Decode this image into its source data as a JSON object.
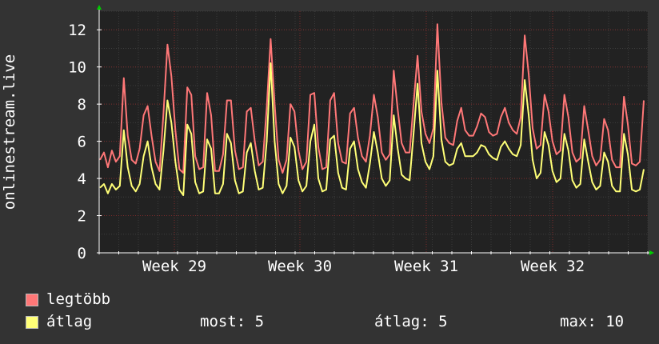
{
  "chart_data": {
    "type": "line",
    "ylabel": "onlinestream.live",
    "ylim": [
      0,
      13
    ],
    "yticks": [
      "0",
      "2",
      "4",
      "6",
      "8",
      "10",
      "12"
    ],
    "xticks": [
      "Week 29",
      "Week 30",
      "Week 31",
      "Week 32"
    ],
    "grid": true,
    "series": [
      {
        "name": "legtöbb",
        "color": "#ff7777",
        "values": [
          5.0,
          5.4,
          4.6,
          5.5,
          4.9,
          5.2,
          9.4,
          6.3,
          5.0,
          4.8,
          5.6,
          7.4,
          7.9,
          6.3,
          4.9,
          4.4,
          7.5,
          11.2,
          9.5,
          6.6,
          4.5,
          4.3,
          8.9,
          8.5,
          5.2,
          4.5,
          4.6,
          8.6,
          7.4,
          4.4,
          4.4,
          5.3,
          8.2,
          8.2,
          5.5,
          4.5,
          4.6,
          7.6,
          7.8,
          6.0,
          4.7,
          4.9,
          7.8,
          11.5,
          8.0,
          5.0,
          4.3,
          5.0,
          8.0,
          7.6,
          5.5,
          4.5,
          4.9,
          8.5,
          8.6,
          5.7,
          4.5,
          4.6,
          8.2,
          8.6,
          5.9,
          4.9,
          4.8,
          7.5,
          7.8,
          6.2,
          5.2,
          4.9,
          6.3,
          8.5,
          7.3,
          5.4,
          5.0,
          5.3,
          9.8,
          7.7,
          5.9,
          5.4,
          5.4,
          8.0,
          10.6,
          7.6,
          6.4,
          5.9,
          6.7,
          12.3,
          8.1,
          6.2,
          5.9,
          5.8,
          7.1,
          7.8,
          6.6,
          6.3,
          6.3,
          6.8,
          7.5,
          7.3,
          6.5,
          6.3,
          6.4,
          7.3,
          7.8,
          7.0,
          6.6,
          6.4,
          7.3,
          11.7,
          9.6,
          6.7,
          5.6,
          5.8,
          8.5,
          7.6,
          6.0,
          5.3,
          5.5,
          8.5,
          7.3,
          5.4,
          4.9,
          5.1,
          7.9,
          6.6,
          5.2,
          4.7,
          5.0,
          7.2,
          6.6,
          5.0,
          4.6,
          4.6,
          8.4,
          6.9,
          4.8,
          4.7,
          4.9,
          8.2
        ]
      },
      {
        "name": "átlag",
        "color": "#ffff77",
        "values": [
          3.5,
          3.7,
          3.2,
          3.7,
          3.4,
          3.6,
          6.6,
          4.6,
          3.6,
          3.3,
          3.7,
          5.2,
          6.0,
          4.6,
          3.7,
          3.4,
          5.5,
          8.2,
          7.0,
          4.9,
          3.4,
          3.1,
          6.9,
          6.4,
          3.8,
          3.2,
          3.3,
          6.1,
          5.6,
          3.2,
          3.2,
          3.7,
          6.4,
          5.9,
          3.9,
          3.2,
          3.3,
          5.4,
          5.9,
          4.4,
          3.4,
          3.5,
          6.0,
          10.2,
          6.0,
          3.7,
          3.2,
          3.6,
          6.2,
          5.7,
          3.9,
          3.3,
          3.6,
          6.0,
          6.9,
          4.0,
          3.3,
          3.4,
          6.1,
          6.3,
          4.3,
          3.5,
          3.4,
          5.6,
          6.0,
          4.5,
          3.8,
          3.5,
          4.8,
          6.5,
          5.4,
          4.0,
          3.6,
          3.9,
          7.4,
          5.6,
          4.2,
          4.0,
          3.9,
          6.4,
          9.1,
          5.9,
          4.9,
          4.5,
          5.2,
          9.8,
          6.1,
          4.9,
          4.7,
          4.8,
          5.6,
          5.9,
          5.2,
          5.2,
          5.2,
          5.4,
          5.8,
          5.7,
          5.3,
          5.1,
          5.0,
          5.7,
          6.0,
          5.6,
          5.3,
          5.2,
          5.8,
          9.3,
          7.4,
          5.0,
          4.0,
          4.3,
          6.5,
          5.8,
          4.4,
          3.8,
          4.0,
          6.4,
          5.5,
          3.9,
          3.5,
          3.7,
          6.1,
          4.9,
          3.8,
          3.4,
          3.6,
          5.4,
          4.9,
          3.6,
          3.3,
          3.3,
          6.4,
          5.3,
          3.4,
          3.3,
          3.4,
          4.5
        ]
      }
    ]
  },
  "legend": {
    "max_label": "legtöbb",
    "avg_label": "átlag",
    "colors": {
      "max": "#ff7777",
      "avg": "#ffff77"
    }
  },
  "stats": {
    "now": "most: 5",
    "avg": "átlag: 5",
    "max": "max: 10"
  }
}
